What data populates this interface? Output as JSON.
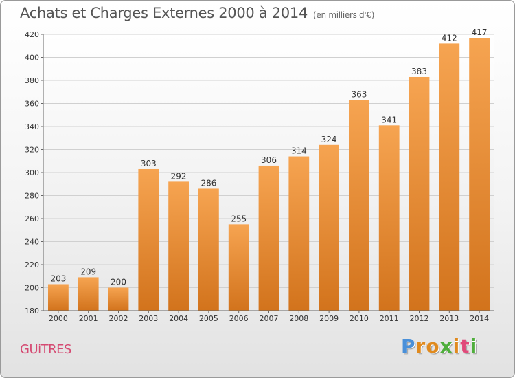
{
  "title": "Achats et Charges Externes 2000 à 2014",
  "subtitle": "(en milliers d'€)",
  "town": "GUiTRES",
  "logo": {
    "letters": [
      "P",
      "r",
      "o",
      "x",
      "i",
      "t",
      "i"
    ],
    "colors": [
      "#4a90d9",
      "#e08a1e",
      "#e08a1e",
      "#4fae3c",
      "#e08a1e",
      "#e04a7a",
      "#4fae3c"
    ]
  },
  "colors": {
    "bar_light": "#f6a451",
    "bar_dark": "#d2731c",
    "grid": "#d0d0d0",
    "plot_bg": "#ffffff",
    "plot_bg_bottom": "#e8e8e8"
  },
  "chart_data": {
    "type": "bar",
    "title": "Achats et Charges Externes 2000 à 2014",
    "subtitle": "(en milliers d'€)",
    "categories": [
      "2000",
      "2001",
      "2002",
      "2003",
      "2004",
      "2005",
      "2006",
      "2007",
      "2008",
      "2009",
      "2010",
      "2011",
      "2012",
      "2013",
      "2014"
    ],
    "values": [
      203,
      209,
      200,
      303,
      292,
      286,
      255,
      306,
      314,
      324,
      363,
      341,
      383,
      412,
      417
    ],
    "data_labels": [
      "203",
      "209",
      "200",
      "303",
      "292",
      "286",
      "255",
      "306",
      "314",
      "324",
      "363",
      "341",
      "383",
      "412",
      "417"
    ],
    "ylim": [
      180,
      420
    ],
    "yticks": [
      180,
      200,
      220,
      240,
      260,
      280,
      300,
      320,
      340,
      360,
      380,
      400,
      420
    ],
    "ytick_labels": [
      "180",
      "200",
      "220",
      "240",
      "260",
      "280",
      "300",
      "320",
      "340",
      "360",
      "380",
      "400",
      "420"
    ],
    "grid": true,
    "legend": "none"
  }
}
